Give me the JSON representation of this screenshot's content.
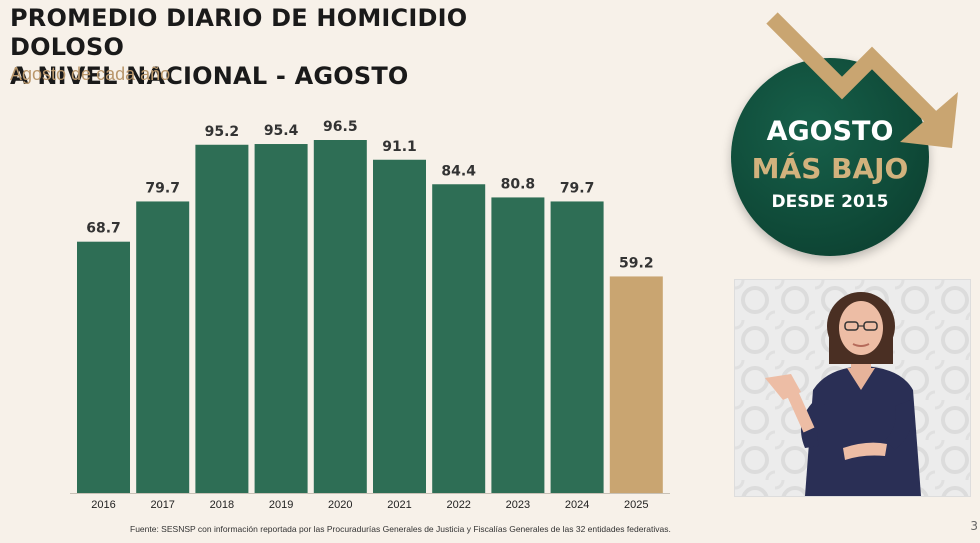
{
  "title_line1": "PROMEDIO DIARIO DE HOMICIDIO DOLOSO",
  "title_line2": "A NIVEL NACIONAL - AGOSTO",
  "subtitle": "Agosto de cada año",
  "source": "Fuente: SESNSP con información reportada por las Procuradurías Generales de Justicia y Fiscalías Generales de las 32 entidades federativas.",
  "badge": {
    "line1": "AGOSTO",
    "line2": "MÁS BAJO",
    "line3": "DESDE 2015"
  },
  "page_number": "3",
  "colors": {
    "bar": "#2e6e55",
    "highlight_bar": "#c9a571",
    "badge_bg": "#0f4a38",
    "badge_accent": "#d2b27d",
    "arrow": "#c9a571",
    "subtitle": "#b9976c"
  },
  "icons": {
    "arrow": "down-trend-arrow-icon"
  },
  "chart_data": {
    "type": "bar",
    "categories": [
      "2016",
      "2017",
      "2018",
      "2019",
      "2020",
      "2021",
      "2022",
      "2023",
      "2024",
      "2025"
    ],
    "values": [
      68.7,
      79.7,
      95.2,
      95.4,
      96.5,
      91.1,
      84.4,
      80.8,
      79.7,
      59.2
    ],
    "labels": [
      "68.7",
      "79.7",
      "95.2",
      "95.4",
      "96.5",
      "91.1",
      "84.4",
      "80.8",
      "79.7",
      "59.2"
    ],
    "highlight_index": 9,
    "ylim": [
      0,
      96.5
    ],
    "grid": false,
    "xlabel": "",
    "ylabel": ""
  }
}
